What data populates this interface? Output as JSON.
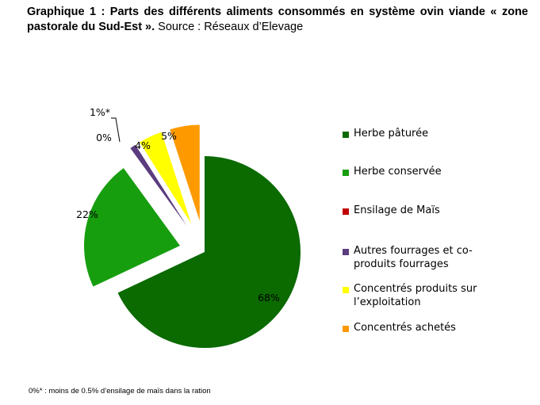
{
  "title": {
    "bold": "Graphique 1 : Parts des différents aliments consommés en système ovin viande « zone pastorale du Sud-Est ».",
    "normal": " Source : Réseaux d’Elevage"
  },
  "chart_data": {
    "type": "pie",
    "title": "Graphique 1 : Parts des différents aliments consommés en système ovin viande « zone pastorale du Sud-Est ». Source : Réseaux d’Elevage",
    "categories": [
      "Herbe pâturée",
      "Herbe conservée",
      "Ensilage de Maïs",
      "Autres fourrages et co-produits fourrages",
      "Concentrés produits sur l’exploitation",
      "Concentrés achetés"
    ],
    "values": [
      68,
      22,
      0,
      1,
      4,
      5
    ],
    "data_labels": [
      "68%",
      "22%",
      "0%",
      "1%*",
      "4%",
      "5%"
    ],
    "colors": [
      "#0b6a00",
      "#179e0f",
      "#c00000",
      "#5b3c7e",
      "#ffff00",
      "#ff9900"
    ],
    "legend_position": "right",
    "exploded": true
  },
  "footnote": "0%* : moins de 0.5% d’ensilage de maïs dans la ration"
}
